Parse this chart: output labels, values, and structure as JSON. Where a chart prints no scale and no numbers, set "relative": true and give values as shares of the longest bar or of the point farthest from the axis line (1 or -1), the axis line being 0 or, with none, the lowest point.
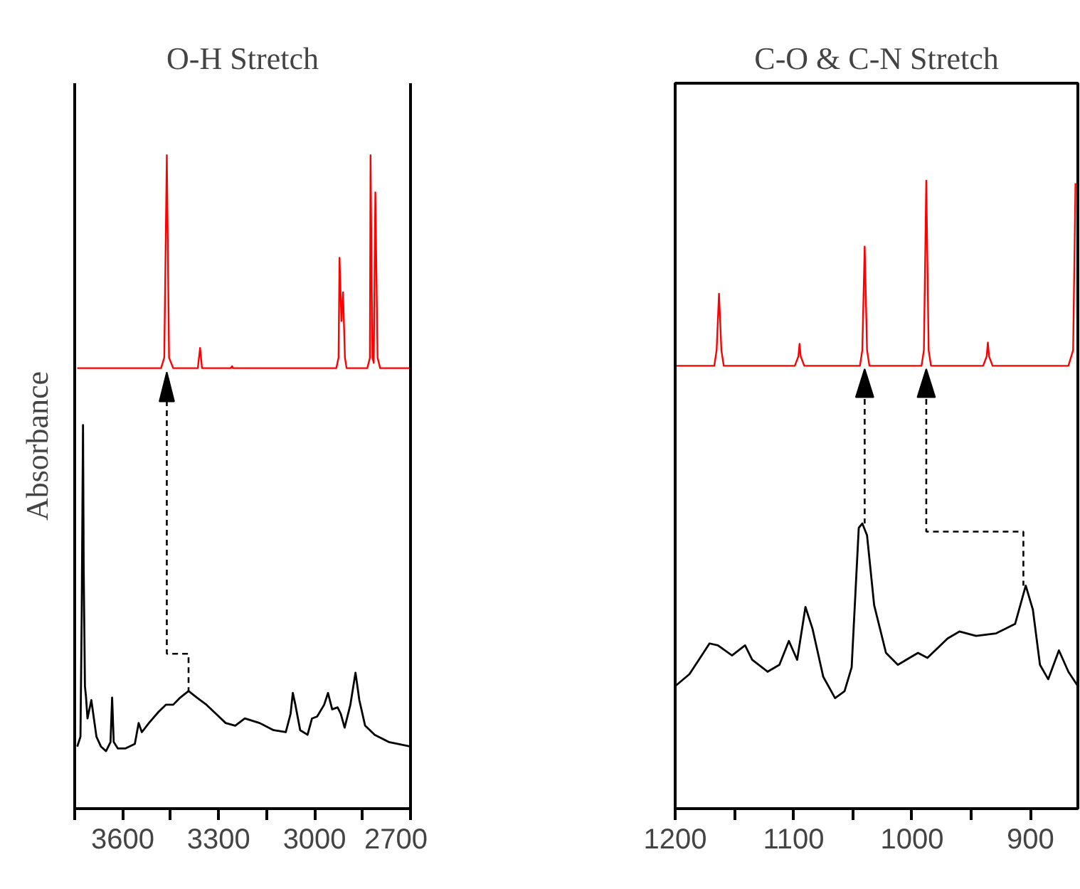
{
  "chart_data": [
    {
      "type": "line",
      "title": "O-H Stretch",
      "ylabel": "Absorbance",
      "relative": true,
      "xlim": [
        3750,
        2700
      ],
      "xticks": [
        {
          "value": 3750,
          "label": null
        },
        3600,
        {
          "value": 3450,
          "label": null
        },
        3300,
        {
          "value": 3150,
          "label": null
        },
        3000,
        {
          "value": 2850,
          "label": null
        },
        2700
      ],
      "series": [
        {
          "color": "#ff0000",
          "x": [
            3742,
            3480,
            3470,
            3462,
            3455,
            3442,
            3365,
            3358,
            3352,
            3262,
            3258,
            3255,
            2932,
            2925,
            2922,
            2916,
            2911,
            2905,
            2900,
            2835,
            2827,
            2825,
            2819,
            2815,
            2810,
            2803,
            2795,
            2700
          ],
          "values": [
            0.674,
            0.674,
            0.69,
            1.0,
            0.69,
            0.674,
            0.674,
            0.705,
            0.674,
            0.674,
            0.677,
            0.674,
            0.674,
            0.69,
            0.843,
            0.746,
            0.79,
            0.69,
            0.674,
            0.674,
            0.69,
            1.0,
            0.69,
            0.682,
            0.943,
            0.69,
            0.674,
            0.674
          ]
        },
        {
          "color": "#000000",
          "x": [
            3742,
            3732,
            3728,
            3724,
            3722,
            3718,
            3715,
            3710,
            3704,
            3698,
            3690,
            3682,
            3668,
            3652,
            3638,
            3633,
            3628,
            3615,
            3592,
            3562,
            3550,
            3540,
            3518,
            3488,
            3465,
            3442,
            3420,
            3394,
            3368,
            3338,
            3308,
            3278,
            3248,
            3218,
            3172,
            3128,
            3090,
            3075,
            3068,
            3060,
            3045,
            3022,
            3008,
            2992,
            2970,
            2958,
            2945,
            2928,
            2918,
            2906,
            2888,
            2872,
            2860,
            2842,
            2812,
            2768,
            2738,
            2700
          ],
          "values": [
            0.095,
            0.11,
            0.3,
            0.587,
            0.371,
            0.187,
            0.173,
            0.138,
            0.152,
            0.166,
            0.138,
            0.11,
            0.095,
            0.088,
            0.102,
            0.17,
            0.102,
            0.092,
            0.092,
            0.099,
            0.131,
            0.117,
            0.131,
            0.148,
            0.159,
            0.159,
            0.17,
            0.18,
            0.17,
            0.159,
            0.145,
            0.131,
            0.127,
            0.138,
            0.131,
            0.12,
            0.117,
            0.145,
            0.177,
            0.159,
            0.12,
            0.113,
            0.138,
            0.141,
            0.159,
            0.177,
            0.152,
            0.155,
            0.145,
            0.124,
            0.159,
            0.208,
            0.166,
            0.127,
            0.113,
            0.102,
            0.099,
            0.095
          ]
        }
      ]
    },
    {
      "type": "line",
      "title": "C-O & C-N Stretch",
      "relative": true,
      "xlim": [
        1200,
        860
      ],
      "xticks": [
        1200,
        {
          "value": 1150,
          "label": null
        },
        1100,
        {
          "value": 1050,
          "label": null
        },
        1000,
        {
          "value": 950,
          "label": null
        },
        900
      ],
      "series": [
        {
          "color": "#ff0000",
          "x": [
            1200,
            1167,
            1165,
            1163,
            1161,
            1159,
            1099,
            1096,
            1095,
            1094,
            1091,
            1044,
            1042,
            1040,
            1038,
            1036,
            992,
            990,
            988,
            986,
            984,
            940,
            937,
            936,
            935,
            932,
            868,
            864,
            862
          ],
          "values": [
            0.705,
            0.705,
            0.73,
            0.82,
            0.73,
            0.705,
            0.705,
            0.72,
            0.74,
            0.72,
            0.705,
            0.705,
            0.73,
            0.895,
            0.73,
            0.705,
            0.705,
            0.73,
            1.0,
            0.73,
            0.705,
            0.705,
            0.72,
            0.742,
            0.72,
            0.705,
            0.705,
            0.73,
            0.996
          ]
        },
        {
          "color": "#000000",
          "x": [
            1200,
            1188,
            1180,
            1171,
            1164,
            1152,
            1141,
            1135,
            1122,
            1112,
            1104,
            1097,
            1090,
            1084,
            1075,
            1065,
            1057,
            1051,
            1045,
            1042,
            1038,
            1032,
            1022,
            1012,
            995,
            987,
            970,
            960,
            946,
            929,
            913,
            904,
            898,
            892,
            885,
            876,
            868,
            860
          ],
          "values": [
            0.195,
            0.214,
            0.237,
            0.263,
            0.26,
            0.244,
            0.26,
            0.237,
            0.218,
            0.229,
            0.267,
            0.237,
            0.321,
            0.286,
            0.21,
            0.176,
            0.187,
            0.225,
            0.447,
            0.454,
            0.435,
            0.324,
            0.248,
            0.229,
            0.248,
            0.24,
            0.271,
            0.282,
            0.275,
            0.279,
            0.294,
            0.355,
            0.317,
            0.229,
            0.206,
            0.252,
            0.218,
            0.195
          ]
        }
      ]
    }
  ]
}
